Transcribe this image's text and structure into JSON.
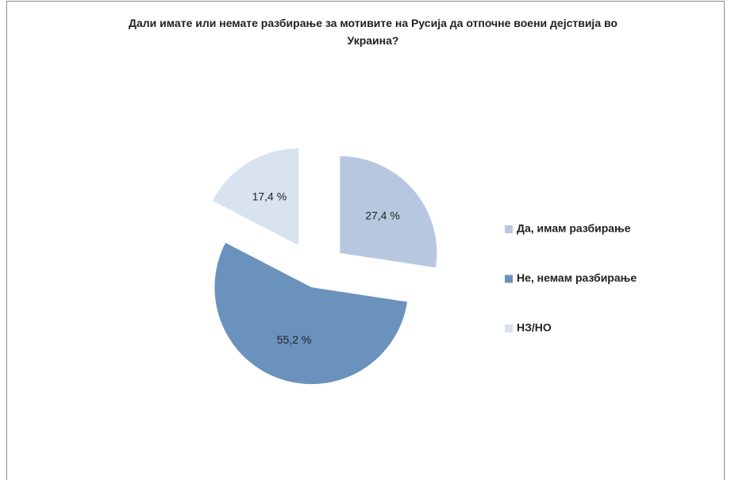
{
  "chart_data": {
    "type": "pie",
    "title": "Дали имате или немате разбирање за мотивите на Русија да отпочне воени дејствија во Украина?",
    "categories": [
      "Да, имам разбирање",
      "Не, немам разбирање",
      "НЗ/НО"
    ],
    "values": [
      27.4,
      55.2,
      17.4
    ],
    "value_labels": [
      "27,4 %",
      "55,2 %",
      "17,4 %"
    ],
    "colors": [
      "#b8c7e0",
      "#6a92bc",
      "#d9e2ef"
    ],
    "legend": "right"
  }
}
